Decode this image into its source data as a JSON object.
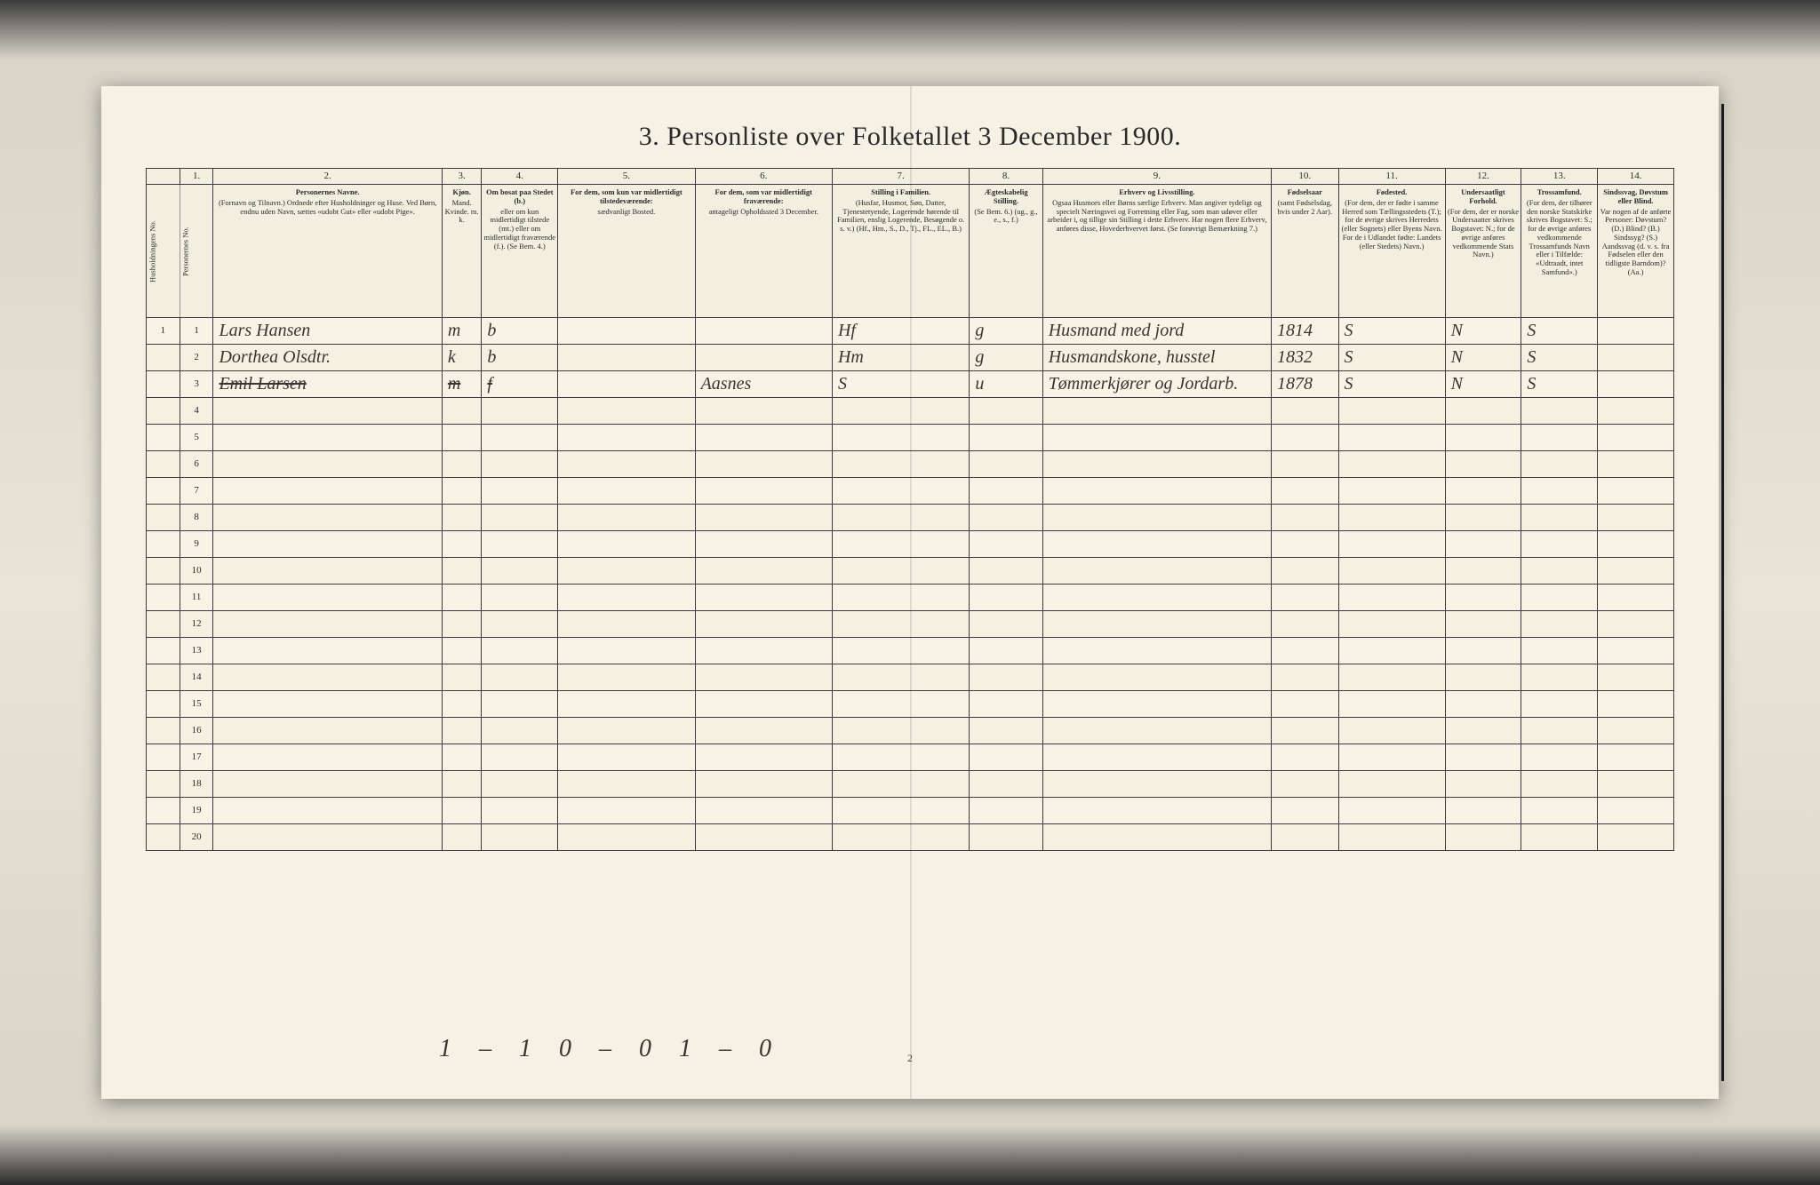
{
  "title": "3.  Personliste over Folketallet 3 December 1900.",
  "page_number": "2",
  "footer_handwriting": "1 – 1   0 – 0   1 – 0",
  "col_numbers": [
    "",
    "1.",
    "2.",
    "3.",
    "4.",
    "5.",
    "6.",
    "7.",
    "8.",
    "9.",
    "10.",
    "11.",
    "12.",
    "13.",
    "14."
  ],
  "headers": {
    "h0a": "Husholdningens No.",
    "h0b": "Personernes No.",
    "h2_strong": "Personernes Navne.",
    "h2_rest": "(Fornavn og Tilnavn.)\nOrdnede efter Husholdninger og Huse.\nVed Børn, endnu uden Navn, sættes «udobt Gut» eller «udobt Pige».",
    "h3_strong": "Kjøn.",
    "h3_rest": "Mand. Kvinde.\nm.  k.",
    "h4_strong": "Om bosat paa Stedet (b.)",
    "h4_rest": "eller om kun midlertidigt tilstede (mt.) eller om midlertidigt fraværende (f.).\n(Se Bem. 4.)",
    "h5_strong": "For dem, som kun var midlertidigt tilstedeværende:",
    "h5_rest": "sædvanligt Bosted.",
    "h6_strong": "For dem, som var midlertidigt fraværende:",
    "h6_rest": "antageligt Opholdssted 3 December.",
    "h7_strong": "Stilling i Familien.",
    "h7_rest": "(Husfar, Husmor, Søn, Datter, Tjenestetyende, Logerende hørende til Familien, enslig Logerende, Besøgende o. s. v.)\n(Hf., Hm., S., D., Tj., FL., EL., B.)",
    "h8_strong": "Ægteskabelig Stilling.",
    "h8_rest": "(Se Bem. 6.)\n(ug., g., e., s., f.)",
    "h9_strong": "Erhverv og Livsstilling.",
    "h9_rest": "Ogsaa Husmors eller Børns særlige Erhverv. Man angiver tydeligt og specielt Næringsvei og Forretning eller Fag, som man udøver eller arbeider i, og tillige sin Stilling i dette Erhverv. Har nogen flere Erhverv, anføres disse, Hovederhvervet først.\n(Se forøvrigt Bemærkning 7.)",
    "h10_strong": "Fødselsaar",
    "h10_rest": "(samt Fødselsdag, hvis under 2 Aar).",
    "h11_strong": "Fødested.",
    "h11_rest": "(For dem, der er fødte i samme Herred som Tællingsstedets (T.); for de øvrige skrives Herredets (eller Sognets) eller Byens Navn. For de i Udlandet fødte: Landets (eller Stedets) Navn.)",
    "h12_strong": "Undersaatligt Forhold.",
    "h12_rest": "(For dem, der er norske Undersaatter skrives Bogstavet: N.; for de øvrige anføres vedkommende Stats Navn.)",
    "h13_strong": "Trossamfund.",
    "h13_rest": "(For dem, der tilhører den norske Statskirke skrives Bogstavet: S.; for de øvrige anføres vedkommende Trossamfunds Navn eller i Tilfælde: «Udtraadt, intet Samfund».)",
    "h14_strong": "Sindssvag, Døvstum eller Blind.",
    "h14_rest": "Var nogen af de anførte Personer:\nDøvstum? (D.)\nBlind? (B.)\nSindssyg? (S.)\nAandssvag (d. v. s. fra Fødselen eller den tidligste Barndom)? (Aa.)"
  },
  "col_widths_pct": [
    2.2,
    2.2,
    15,
    2.6,
    5,
    9,
    9,
    9,
    4.8,
    15,
    4.4,
    7,
    5,
    5,
    5
  ],
  "rows": [
    {
      "hh": "1",
      "pn": "1",
      "name": "Lars Hansen",
      "kjon": "m",
      "bosat": "b",
      "tilst": "",
      "frav": "",
      "fam": "Hf",
      "egt": "g",
      "erhv": "Husmand med jord",
      "faar": "1814",
      "fsted": "S",
      "und": "N",
      "tro": "S",
      "sind": ""
    },
    {
      "hh": "",
      "pn": "2",
      "name": "Dorthea Olsdtr.",
      "kjon": "k",
      "bosat": "b",
      "tilst": "",
      "frav": "",
      "fam": "Hm",
      "egt": "g",
      "erhv": "Husmandskone, husstel",
      "faar": "1832",
      "fsted": "S",
      "und": "N",
      "tro": "S",
      "sind": ""
    },
    {
      "hh": "",
      "pn": "3",
      "name": "Emil Larsen",
      "kjon": "m",
      "bosat": "f",
      "tilst": "",
      "frav": "Aasnes",
      "fam": "S",
      "egt": "u",
      "erhv": "Tømmerkjører og Jordarb.",
      "faar": "1878",
      "fsted": "S",
      "und": "N",
      "tro": "S",
      "sind": "",
      "struck": true
    },
    {
      "hh": "",
      "pn": "4"
    },
    {
      "hh": "",
      "pn": "5"
    },
    {
      "hh": "",
      "pn": "6"
    },
    {
      "hh": "",
      "pn": "7"
    },
    {
      "hh": "",
      "pn": "8"
    },
    {
      "hh": "",
      "pn": "9"
    },
    {
      "hh": "",
      "pn": "10"
    },
    {
      "hh": "",
      "pn": "11"
    },
    {
      "hh": "",
      "pn": "12"
    },
    {
      "hh": "",
      "pn": "13"
    },
    {
      "hh": "",
      "pn": "14"
    },
    {
      "hh": "",
      "pn": "15"
    },
    {
      "hh": "",
      "pn": "16"
    },
    {
      "hh": "",
      "pn": "17"
    },
    {
      "hh": "",
      "pn": "18"
    },
    {
      "hh": "",
      "pn": "19"
    },
    {
      "hh": "",
      "pn": "20"
    }
  ],
  "colors": {
    "page_bg": "#f5f1e4",
    "rule": "#3a3a3a",
    "ink": "#3a3530"
  }
}
